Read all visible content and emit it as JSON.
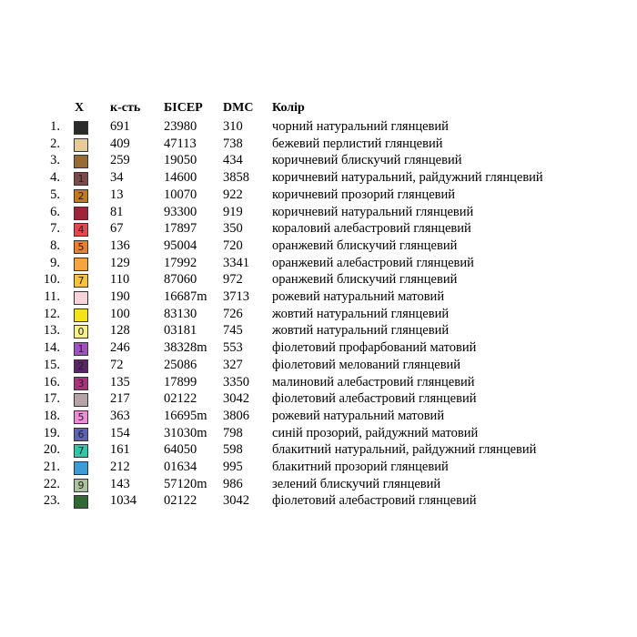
{
  "header": {
    "symbol": "X",
    "count": "к-сть",
    "bead": "БІСЕР",
    "dmc": "DMC",
    "color": "Колір"
  },
  "rows": [
    {
      "num": "1.",
      "symbol": "",
      "swatch": "#2b2b2b",
      "count": "691",
      "bead": "23980",
      "dmc": "310",
      "name": "чорний натуральний глянцевий"
    },
    {
      "num": "2.",
      "symbol": "",
      "swatch": "#e8cc98",
      "count": "409",
      "bead": "47113",
      "dmc": "738",
      "name": "бежевий перлистий глянцевий"
    },
    {
      "num": "3.",
      "symbol": "",
      "swatch": "#9a6a33",
      "count": "259",
      "bead": "19050",
      "dmc": "434",
      "name": "коричневий блискучий глянцевий"
    },
    {
      "num": "4.",
      "symbol": "1",
      "swatch": "#7b4a4a",
      "count": "34",
      "bead": "14600",
      "dmc": "3858",
      "name": "коричневий натуральний, райдужний глянцевий"
    },
    {
      "num": "5.",
      "symbol": "2",
      "swatch": "#c77a12",
      "count": "13",
      "bead": "10070",
      "dmc": "922",
      "name": "коричневий прозорий глянцевий"
    },
    {
      "num": "6.",
      "symbol": "",
      "swatch": "#9e2438",
      "count": "81",
      "bead": "93300",
      "dmc": "919",
      "name": "коричневий натуральний глянцевий"
    },
    {
      "num": "7.",
      "symbol": "4",
      "swatch": "#e8454e",
      "count": "67",
      "bead": "17897",
      "dmc": "350",
      "name": "кораловий алебастровий  глянцевий"
    },
    {
      "num": "8.",
      "symbol": "5",
      "swatch": "#f07d2a",
      "count": "136",
      "bead": "95004",
      "dmc": "720",
      "name": "оранжевий блискучий глянцевий"
    },
    {
      "num": "9.",
      "symbol": "",
      "swatch": "#f7a43c",
      "count": "129",
      "bead": "17992",
      "dmc": "3341",
      "name": "оранжевий алебастровий глянцевий"
    },
    {
      "num": "10.",
      "symbol": "7",
      "swatch": "#f9c23a",
      "count": "110",
      "bead": "87060",
      "dmc": "972",
      "name": "оранжевий блискучий глянцевий"
    },
    {
      "num": "11.",
      "symbol": "",
      "swatch": "#f9d3d8",
      "count": "190",
      "bead": "16687m",
      "dmc": "3713",
      "name": "рожевий натуральний матовий"
    },
    {
      "num": "12.",
      "symbol": "",
      "swatch": "#f5e31a",
      "count": "100",
      "bead": "83130",
      "dmc": "726",
      "name": "жовтий натуральний глянцевий"
    },
    {
      "num": "13.",
      "symbol": "0",
      "swatch": "#f9f08a",
      "count": "128",
      "bead": "03181",
      "dmc": "745",
      "name": "жовтий натуральний глянцевий"
    },
    {
      "num": "14.",
      "symbol": "1",
      "swatch": "#a24fc4",
      "count": "246",
      "bead": "38328m",
      "dmc": "553",
      "name": "фіолетовий профарбований матовий"
    },
    {
      "num": "15.",
      "symbol": "2",
      "swatch": "#5a2466",
      "count": "72",
      "bead": "25086",
      "dmc": "327",
      "name": "фіолетовий мелований глянцевий"
    },
    {
      "num": "16.",
      "symbol": "3",
      "swatch": "#b0307e",
      "count": "135",
      "bead": "17899",
      "dmc": "3350",
      "name": "малиновий алебастровий глянцевий"
    },
    {
      "num": "17.",
      "symbol": "",
      "swatch": "#b5a3a6",
      "count": "217",
      "bead": "02122",
      "dmc": "3042",
      "name": "фіолетовий алебастровий глянцевий"
    },
    {
      "num": "18.",
      "symbol": "5",
      "swatch": "#ee8ad6",
      "count": "363",
      "bead": "16695m",
      "dmc": "3806",
      "name": "рожевий натуральний матовий"
    },
    {
      "num": "19.",
      "symbol": "6",
      "swatch": "#5a63b8",
      "count": "154",
      "bead": "31030m",
      "dmc": "798",
      "name": "синій прозорий, райдужний матовий"
    },
    {
      "num": "20.",
      "symbol": "7",
      "swatch": "#2ec7a9",
      "count": "161",
      "bead": "64050",
      "dmc": "598",
      "name": "блакитний натуральний, райдужний глянцевий"
    },
    {
      "num": "21.",
      "symbol": "",
      "swatch": "#3e9bd6",
      "count": "212",
      "bead": "01634",
      "dmc": "995",
      "name": "блакитний прозорий глянцевий"
    },
    {
      "num": "22.",
      "symbol": "9",
      "swatch": "#a9c49a",
      "count": "143",
      "bead": "57120m",
      "dmc": "986",
      "name": "зелений блискучий глянцевий"
    },
    {
      "num": "23.",
      "symbol": "",
      "swatch": "#2f6a32",
      "count": "1034",
      "bead": "02122",
      "dmc": "3042",
      "name": "фіолетовий алебастровий глянцевий"
    }
  ]
}
